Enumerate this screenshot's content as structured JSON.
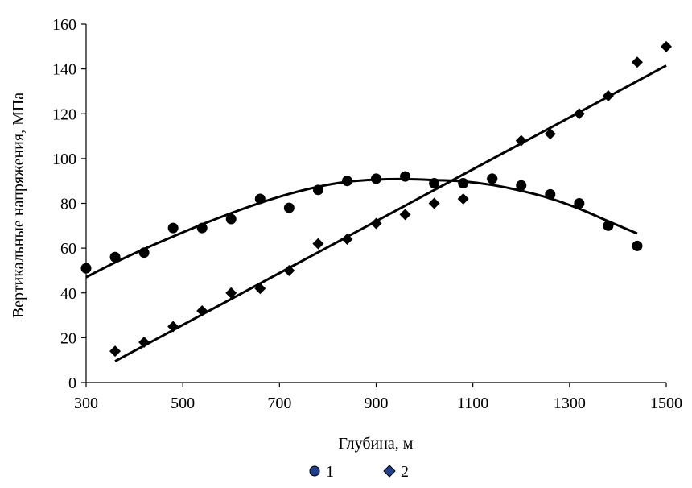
{
  "chart_data": {
    "type": "scatter",
    "title": "",
    "xlabel": "Глубина, м",
    "ylabel": "Вертикальные напряжения, МПа",
    "xlim": [
      300,
      1500
    ],
    "ylim": [
      0,
      160
    ],
    "x_ticks": [
      300,
      500,
      700,
      900,
      1100,
      1300,
      1500
    ],
    "y_ticks": [
      0,
      20,
      40,
      60,
      80,
      100,
      120,
      140,
      160
    ],
    "grid": false,
    "legend_position": "bottom",
    "series": [
      {
        "name": "1",
        "marker": "circle",
        "color": "#000000",
        "legend_color": "#1f3f8f",
        "x": [
          300,
          360,
          420,
          480,
          540,
          600,
          660,
          720,
          780,
          840,
          900,
          960,
          1020,
          1080,
          1140,
          1200,
          1260,
          1320,
          1380,
          1440
        ],
        "y": [
          51,
          56,
          58,
          69,
          69,
          73,
          82,
          78,
          86,
          90,
          91,
          92,
          89,
          89,
          91,
          88,
          84,
          80,
          70,
          61
        ],
        "trendline": {
          "x": [
            300,
            360,
            420,
            480,
            540,
            600,
            660,
            720,
            780,
            840,
            900,
            960,
            1020,
            1080,
            1140,
            1200,
            1260,
            1320,
            1380,
            1440
          ],
          "y": [
            47,
            53.6,
            59.6,
            65.2,
            70.6,
            75.6,
            80.2,
            84.2,
            87.4,
            89.6,
            90.6,
            90.8,
            90.4,
            89.8,
            88.2,
            85.6,
            82.2,
            77.6,
            72,
            66.5
          ]
        }
      },
      {
        "name": "2",
        "marker": "diamond",
        "color": "#000000",
        "legend_color": "#1f3f8f",
        "x": [
          360,
          420,
          480,
          540,
          600,
          660,
          720,
          780,
          840,
          900,
          960,
          1020,
          1080,
          1140,
          1200,
          1260,
          1320,
          1380,
          1440,
          1500
        ],
        "y": [
          14,
          18,
          25,
          32,
          40,
          42,
          50,
          62,
          64,
          71,
          75,
          80,
          82,
          91,
          108,
          111,
          120,
          128,
          143,
          150
        ],
        "trendline": {
          "x": [
            360,
            1500
          ],
          "y": [
            9.5,
            141.5
          ]
        }
      }
    ]
  }
}
